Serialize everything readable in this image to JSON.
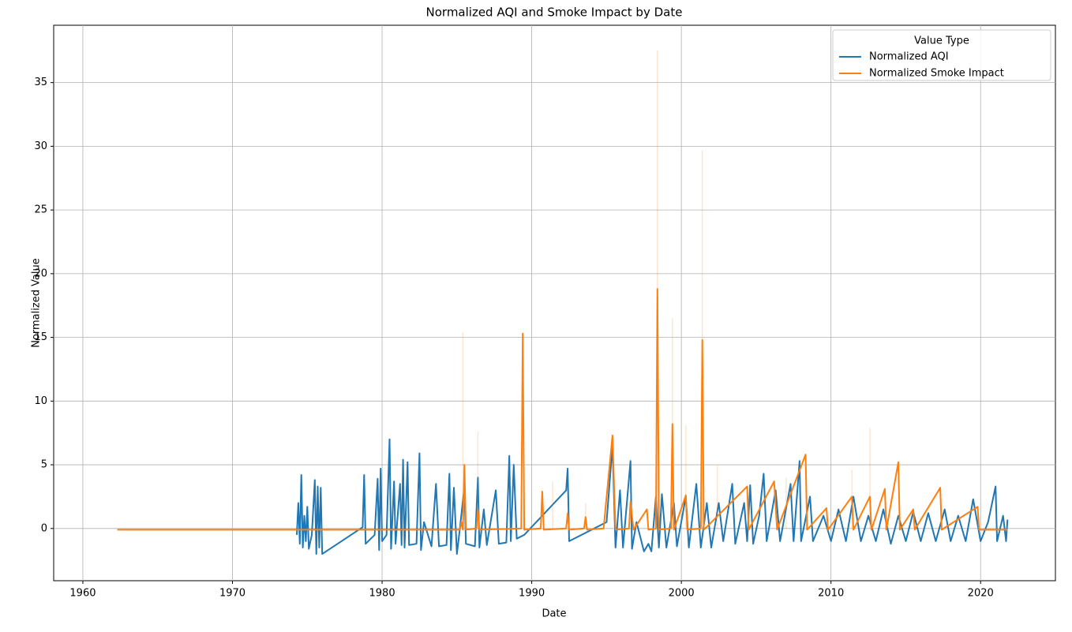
{
  "chart_data": {
    "type": "line",
    "title": "Normalized AQI and Smoke Impact by Date",
    "x_label": "Date",
    "y_label": "Normalized Value",
    "xlim": [
      1958.05,
      2025.0
    ],
    "ylim": [
      -4.1,
      39.5
    ],
    "xticks": [
      1960,
      1970,
      1980,
      1990,
      2000,
      2010,
      2020
    ],
    "yticks": [
      0,
      5,
      10,
      15,
      20,
      25,
      30,
      35
    ],
    "grid": true,
    "legend_title": "Value Type",
    "legend_position": "upper right",
    "series": [
      {
        "name": "Normalized AQI",
        "color": "#1f77b4",
        "x": [
          1974.3,
          1974.4,
          1974.5,
          1974.6,
          1974.7,
          1974.8,
          1974.9,
          1975.0,
          1975.1,
          1975.3,
          1975.5,
          1975.6,
          1975.7,
          1975.8,
          1975.9,
          1976.0,
          1978.7,
          1978.8,
          1978.9,
          1979.5,
          1979.7,
          1979.8,
          1979.9,
          1980.0,
          1980.3,
          1980.5,
          1980.6,
          1980.8,
          1980.9,
          1981.2,
          1981.3,
          1981.4,
          1981.5,
          1981.7,
          1981.8,
          1982.3,
          1982.5,
          1982.6,
          1982.8,
          1983.3,
          1983.6,
          1983.8,
          1984.3,
          1984.5,
          1984.6,
          1984.8,
          1985.0,
          1985.2,
          1985.5,
          1985.6,
          1986.2,
          1986.4,
          1986.5,
          1986.8,
          1987.0,
          1987.6,
          1987.8,
          1988.3,
          1988.5,
          1988.6,
          1988.8,
          1989.0,
          1989.5,
          1992.3,
          1992.4,
          1992.5,
          1995.0,
          1995.4,
          1995.6,
          1995.9,
          1996.1,
          1996.6,
          1996.7,
          1997.0,
          1997.5,
          1997.8,
          1998.0,
          1998.3,
          1998.5,
          1998.7,
          1999.0,
          1999.5,
          1999.7,
          2000.3,
          2000.5,
          2001.0,
          2001.3,
          2001.7,
          2002.0,
          2002.5,
          2002.8,
          2003.4,
          2003.6,
          2004.2,
          2004.4,
          2004.6,
          2004.8,
          2005.2,
          2005.5,
          2005.7,
          2006.3,
          2006.6,
          2007.3,
          2007.5,
          2007.9,
          2008.0,
          2008.6,
          2008.8,
          2009.5,
          2010.0,
          2010.5,
          2011.0,
          2011.5,
          2012.0,
          2012.5,
          2013.0,
          2013.5,
          2014.0,
          2014.5,
          2015.0,
          2015.5,
          2016.0,
          2016.5,
          2017.0,
          2017.6,
          2018.0,
          2018.5,
          2019.0,
          2019.5,
          2020.0,
          2020.5,
          2021.0,
          2021.1,
          2021.5,
          2021.7,
          2021.8
        ],
        "values": [
          -0.5,
          2,
          -1.2,
          4.2,
          -1.5,
          1,
          -1,
          1.7,
          -1.6,
          -0.5,
          3.8,
          -2,
          3.3,
          -1.5,
          3.2,
          -2.0,
          0.1,
          4.2,
          -1.2,
          -0.5,
          3.9,
          -1.7,
          4.7,
          -1,
          -0.5,
          7.0,
          -1.6,
          3.7,
          -1.2,
          3.5,
          -1.3,
          5.4,
          -1.5,
          5.2,
          -1.3,
          -1.2,
          5.9,
          -1.7,
          0.5,
          -1.4,
          3.5,
          -1.4,
          -1.3,
          4.3,
          -1.7,
          3.2,
          -2.0,
          0,
          3.3,
          -1.2,
          -1.4,
          4.0,
          -1.5,
          1.5,
          -1.3,
          3.0,
          -1.2,
          -1.1,
          5.7,
          -1.0,
          5.0,
          -0.8,
          -0.5,
          3.0,
          4.7,
          -1.0,
          0.5,
          6.5,
          -1.5,
          3,
          -1.5,
          5.3,
          -1.6,
          0.5,
          -1.8,
          -1.2,
          -1.8,
          2.5,
          -1.5,
          2.7,
          -1.5,
          2,
          -1.4,
          2.5,
          -1.5,
          3.5,
          -1.5,
          2,
          -1.5,
          2,
          -1,
          3.5,
          -1.2,
          2,
          -1,
          3.4,
          -1.2,
          1,
          4.3,
          -1,
          3,
          -1,
          3.5,
          -1,
          5.3,
          -1,
          2.5,
          -1,
          1,
          -1,
          1.5,
          -1,
          2.5,
          -1,
          1,
          -1,
          1.5,
          -1.2,
          1,
          -1,
          1.3,
          -1,
          1.2,
          -1,
          1.5,
          -1,
          1,
          -1,
          2.3,
          -1,
          0.5,
          3.3,
          -1,
          1,
          -1,
          0.7
        ]
      },
      {
        "name": "Normalized Smoke Impact",
        "color": "#ff7f0e",
        "x": [
          1962.3,
          1985.2,
          1985.3,
          1985.4,
          1985.5,
          1985.6,
          1986.3,
          1986.4,
          1986.5,
          1989.3,
          1989.4,
          1989.5,
          1990.6,
          1990.7,
          1990.8,
          1992.3,
          1992.4,
          1992.5,
          1993.5,
          1993.6,
          1993.7,
          1994.8,
          1995.4,
          1995.6,
          1996.5,
          1996.6,
          1996.8,
          1997.7,
          1997.8,
          1998.3,
          1998.4,
          1998.5,
          1999.3,
          1999.4,
          1999.5,
          2000.3,
          2000.4,
          2001.3,
          2001.4,
          2001.5,
          2004.4,
          2004.5,
          2006.2,
          2006.4,
          2008.3,
          2008.4,
          2009.7,
          2009.8,
          2011.4,
          2011.5,
          2012.6,
          2012.7,
          2013.6,
          2013.7,
          2014.5,
          2014.6,
          2015.5,
          2015.6,
          2017.3,
          2017.4,
          2019.8,
          2019.9,
          2021.8
        ],
        "values": [
          -0.1,
          -0.1,
          0.5,
          -0.1,
          5,
          -0.1,
          0,
          1.5,
          -0.1,
          0,
          15.3,
          -0.1,
          0,
          2.9,
          -0.1,
          0,
          1.2,
          -0.1,
          0,
          0.9,
          -0.1,
          0,
          7.3,
          -0.1,
          0,
          2.1,
          -0.1,
          1.5,
          -0.1,
          0,
          18.8,
          -0.1,
          0,
          8.2,
          -0.1,
          2.6,
          -0.1,
          0,
          14.8,
          -0.1,
          3.3,
          -0.1,
          3.7,
          -0.1,
          5.8,
          -0.1,
          1.6,
          -0.1,
          2.5,
          -0.1,
          2.5,
          -0.1,
          3.1,
          -0.1,
          5.2,
          -0.1,
          1.5,
          -0.1,
          3.2,
          -0.1,
          1.7,
          -0.1,
          -0.1
        ],
        "band": {
          "color": "#ff7f0e",
          "x": [
            1985.4,
            1986.4,
            1991.4,
            1993.6,
            1998.4,
            1999.4,
            2000.3,
            2001.4,
            2002.4,
            2007.0,
            2011.4,
            2012.6
          ],
          "values": [
            15.4,
            7.6,
            3.7,
            2.0,
            37.5,
            16.5,
            8.1,
            29.7,
            5,
            4,
            4.6,
            7.9
          ]
        }
      }
    ]
  }
}
